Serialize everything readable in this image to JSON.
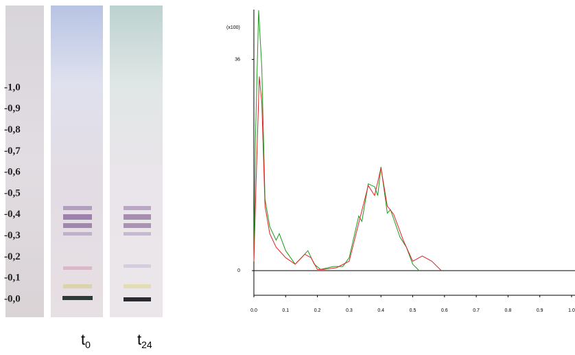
{
  "plate": {
    "scale_labels": [
      "-1,0",
      "-0,9",
      "-0,8",
      "-0,7",
      "-0,6",
      "-0,5",
      "-0,4",
      "-0,3",
      "-0,2",
      "-0,1",
      "-0,0"
    ],
    "lane_labels": [
      {
        "text": "t",
        "sub": "0"
      },
      {
        "text": "t",
        "sub": "24"
      }
    ]
  },
  "chart_data": {
    "type": "line",
    "y_unit": "(x100)",
    "xlim": [
      0,
      1
    ],
    "xticks": [
      {
        "value": 0,
        "label": "0.0"
      },
      0.1,
      0.2,
      0.3,
      0.4,
      0.5,
      0.6,
      0.7,
      0.8,
      0.9,
      {
        "value": 1,
        "label": "1.0"
      }
    ],
    "ylim": [
      -4.2,
      44.5
    ],
    "yticks": [
      0,
      36
    ],
    "series": [
      {
        "color": "#1a9a1a",
        "x": [
          0,
          0.005,
          0.015,
          0.025,
          0.035,
          0.05,
          0.07,
          0.08,
          0.1,
          0.13,
          0.15,
          0.17,
          0.19,
          0.21,
          0.25,
          0.28,
          0.3,
          0.33,
          0.34,
          0.36,
          0.38,
          0.39,
          0.4,
          0.42,
          0.43,
          0.46,
          0.48,
          0.5,
          0.52
        ],
        "values": [
          1.6,
          22.7,
          44.4,
          34.5,
          12.2,
          7.5,
          5.2,
          6.3,
          3.4,
          1.1,
          2.2,
          3.4,
          1.1,
          0.2,
          0.7,
          0.7,
          2.2,
          9.3,
          8.4,
          14.8,
          14.3,
          12.8,
          17.7,
          9.8,
          10.4,
          5.7,
          4,
          1.1,
          0
        ]
      },
      {
        "color": "#e02020",
        "x": [
          0,
          0.008,
          0.017,
          0.025,
          0.035,
          0.05,
          0.07,
          0.1,
          0.13,
          0.16,
          0.18,
          0.2,
          0.22,
          0.26,
          0.3,
          0.33,
          0.36,
          0.38,
          0.4,
          0.42,
          0.44,
          0.47,
          0.5,
          0.53,
          0.56,
          0.59
        ],
        "values": [
          1.6,
          16.9,
          33.1,
          28.6,
          11,
          6.3,
          4,
          2.2,
          1.1,
          2.8,
          2.2,
          0.2,
          0.2,
          0.5,
          1.6,
          8.1,
          14.5,
          12.8,
          17.5,
          11,
          9.6,
          5.2,
          1.6,
          2.5,
          1.6,
          0
        ]
      }
    ]
  }
}
